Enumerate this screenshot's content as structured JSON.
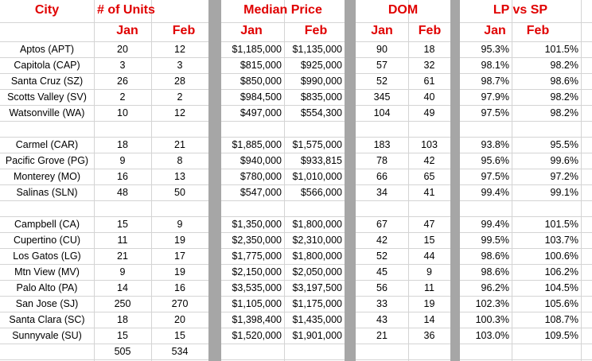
{
  "header": {
    "city": "City",
    "units": "# of Units",
    "median_price": "Median Price",
    "dom": "DOM",
    "lp_vs_sp": "LP vs SP",
    "months": [
      "Jan",
      "Feb",
      "Jan",
      "Feb",
      "Jan",
      "Feb",
      "Jan",
      "Feb"
    ]
  },
  "table": {
    "groups": [
      [
        [
          "Aptos (APT)",
          20,
          12,
          "$1,185,000",
          "$1,135,000",
          90,
          18,
          "95.3%",
          "101.5%"
        ],
        [
          "Capitola (CAP)",
          3,
          3,
          "$815,000",
          "$925,000",
          57,
          32,
          "98.1%",
          "98.2%"
        ],
        [
          "Santa Cruz (SZ)",
          26,
          28,
          "$850,000",
          "$990,000",
          52,
          61,
          "98.7%",
          "98.6%"
        ],
        [
          "Scotts Valley (SV)",
          2,
          2,
          "$984,500",
          "$835,000",
          345,
          40,
          "97.9%",
          "98.2%"
        ],
        [
          "Watsonville (WA)",
          10,
          12,
          "$497,000",
          "$554,300",
          104,
          49,
          "97.5%",
          "98.2%"
        ]
      ],
      [
        [
          "Carmel (CAR)",
          18,
          21,
          "$1,885,000",
          "$1,575,000",
          183,
          103,
          "93.8%",
          "95.5%"
        ],
        [
          "Pacific Grove (PG)",
          9,
          8,
          "$940,000",
          "$933,815",
          78,
          42,
          "95.6%",
          "99.6%"
        ],
        [
          "Monterey (MO)",
          16,
          13,
          "$780,000",
          "$1,010,000",
          66,
          65,
          "97.5%",
          "97.2%"
        ],
        [
          "Salinas (SLN)",
          48,
          50,
          "$547,000",
          "$566,000",
          34,
          41,
          "99.4%",
          "99.1%"
        ]
      ],
      [
        [
          "Campbell (CA)",
          15,
          9,
          "$1,350,000",
          "$1,800,000",
          67,
          47,
          "99.4%",
          "101.5%"
        ],
        [
          "Cupertino (CU)",
          11,
          19,
          "$2,350,000",
          "$2,310,000",
          42,
          15,
          "99.5%",
          "103.7%"
        ],
        [
          "Los Gatos (LG)",
          21,
          17,
          "$1,775,000",
          "$1,800,000",
          52,
          44,
          "98.6%",
          "100.6%"
        ],
        [
          "Mtn View (MV)",
          9,
          19,
          "$2,150,000",
          "$2,050,000",
          45,
          9,
          "98.6%",
          "106.2%"
        ],
        [
          "Palo Alto (PA)",
          14,
          16,
          "$3,535,000",
          "$3,197,500",
          56,
          11,
          "96.2%",
          "104.5%"
        ],
        [
          "San Jose (SJ)",
          250,
          270,
          "$1,105,000",
          "$1,175,000",
          33,
          19,
          "102.3%",
          "105.6%"
        ],
        [
          "Santa Clara (SC)",
          18,
          20,
          "$1,398,400",
          "$1,435,000",
          43,
          14,
          "100.3%",
          "108.7%"
        ],
        [
          "Sunnyvale (SU)",
          15,
          15,
          "$1,520,000",
          "$1,901,000",
          21,
          36,
          "103.0%",
          "109.5%"
        ]
      ]
    ],
    "totals": [
      505,
      534
    ]
  }
}
